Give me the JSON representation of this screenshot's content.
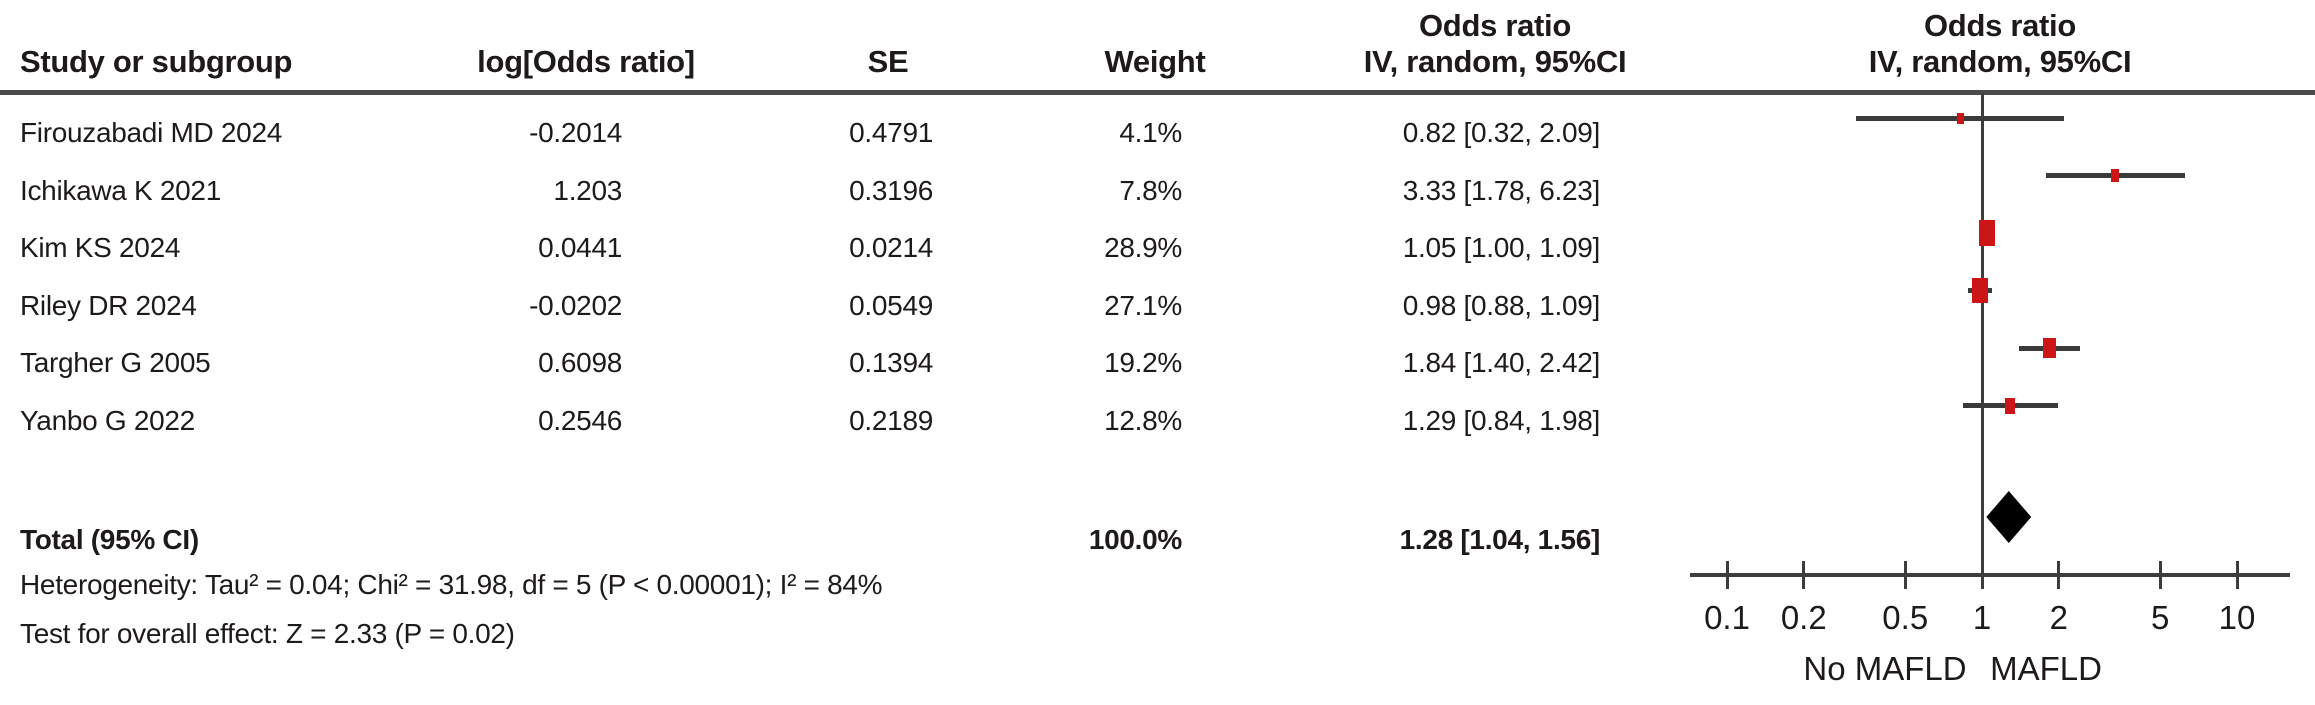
{
  "table": {
    "headers": {
      "study": "Study or subgroup",
      "log_or": "log[Odds ratio]",
      "se": "SE",
      "weight": "Weight",
      "or_ci_line1": "Odds ratio",
      "or_ci_line2": "IV, random, 95%CI",
      "plot_line1": "Odds ratio",
      "plot_line2": "IV, random, 95%CI"
    },
    "rows": [
      {
        "study": "Firouzabadi MD 2024",
        "log_or": "-0.2014",
        "se": "0.4791",
        "weight": "4.1%",
        "or_ci": "0.82 [0.32, 2.09]"
      },
      {
        "study": "Ichikawa K 2021",
        "log_or": "1.203",
        "se": "0.3196",
        "weight": "7.8%",
        "or_ci": "3.33 [1.78, 6.23]"
      },
      {
        "study": "Kim KS 2024",
        "log_or": "0.0441",
        "se": "0.0214",
        "weight": "28.9%",
        "or_ci": "1.05 [1.00, 1.09]"
      },
      {
        "study": "Riley DR 2024",
        "log_or": "-0.0202",
        "se": "0.0549",
        "weight": "27.1%",
        "or_ci": "0.98 [0.88, 1.09]"
      },
      {
        "study": "Targher G 2005",
        "log_or": "0.6098",
        "se": "0.1394",
        "weight": "19.2%",
        "or_ci": "1.84 [1.40, 2.42]"
      },
      {
        "study": "Yanbo G 2022",
        "log_or": "0.2546",
        "se": "0.2189",
        "weight": "12.8%",
        "or_ci": "1.29 [0.84, 1.98]"
      }
    ],
    "total": {
      "label": "Total (95% CI)",
      "weight": "100.0%",
      "or_ci": "1.28 [1.04, 1.56]"
    },
    "heterogeneity": "Heterogeneity: Tau² = 0.04; Chi² = 31.98, df = 5 (P < 0.00001); I² = 84%",
    "overall_effect": "Test for overall effect: Z = 2.33 (P = 0.02)"
  },
  "chart_data": {
    "type": "forest",
    "scale": "log",
    "effect_measure": "Odds ratio",
    "model": "IV, random, 95%CI",
    "null_value": 1,
    "axis_ticks": [
      0.1,
      0.2,
      0.5,
      1,
      2,
      5,
      10
    ],
    "axis_tick_labels": [
      "0.1",
      "0.2",
      "0.5",
      "1",
      "2",
      "5",
      "10"
    ],
    "xlim": [
      0.1,
      10
    ],
    "xlabel_left": "No MAFLD",
    "xlabel_right": "MAFLD",
    "studies": [
      {
        "name": "Firouzabadi MD 2024",
        "or": 0.82,
        "ci_low": 0.32,
        "ci_high": 2.09,
        "weight_pct": 4.1
      },
      {
        "name": "Ichikawa K 2021",
        "or": 3.33,
        "ci_low": 1.78,
        "ci_high": 6.23,
        "weight_pct": 7.8
      },
      {
        "name": "Kim KS 2024",
        "or": 1.05,
        "ci_low": 1.0,
        "ci_high": 1.09,
        "weight_pct": 28.9
      },
      {
        "name": "Riley DR 2024",
        "or": 0.98,
        "ci_low": 0.88,
        "ci_high": 1.09,
        "weight_pct": 27.1
      },
      {
        "name": "Targher G 2005",
        "or": 1.84,
        "ci_low": 1.4,
        "ci_high": 2.42,
        "weight_pct": 19.2
      },
      {
        "name": "Yanbo G 2022",
        "or": 1.29,
        "ci_low": 0.84,
        "ci_high": 1.98,
        "weight_pct": 12.8
      }
    ],
    "total": {
      "or": 1.28,
      "ci_low": 1.04,
      "ci_high": 1.56,
      "weight_pct": 100.0
    },
    "colors": {
      "marker": "#cc1517",
      "diamond": "#000000",
      "line": "#3a3a3a",
      "separator": "#4a4a4a"
    }
  }
}
